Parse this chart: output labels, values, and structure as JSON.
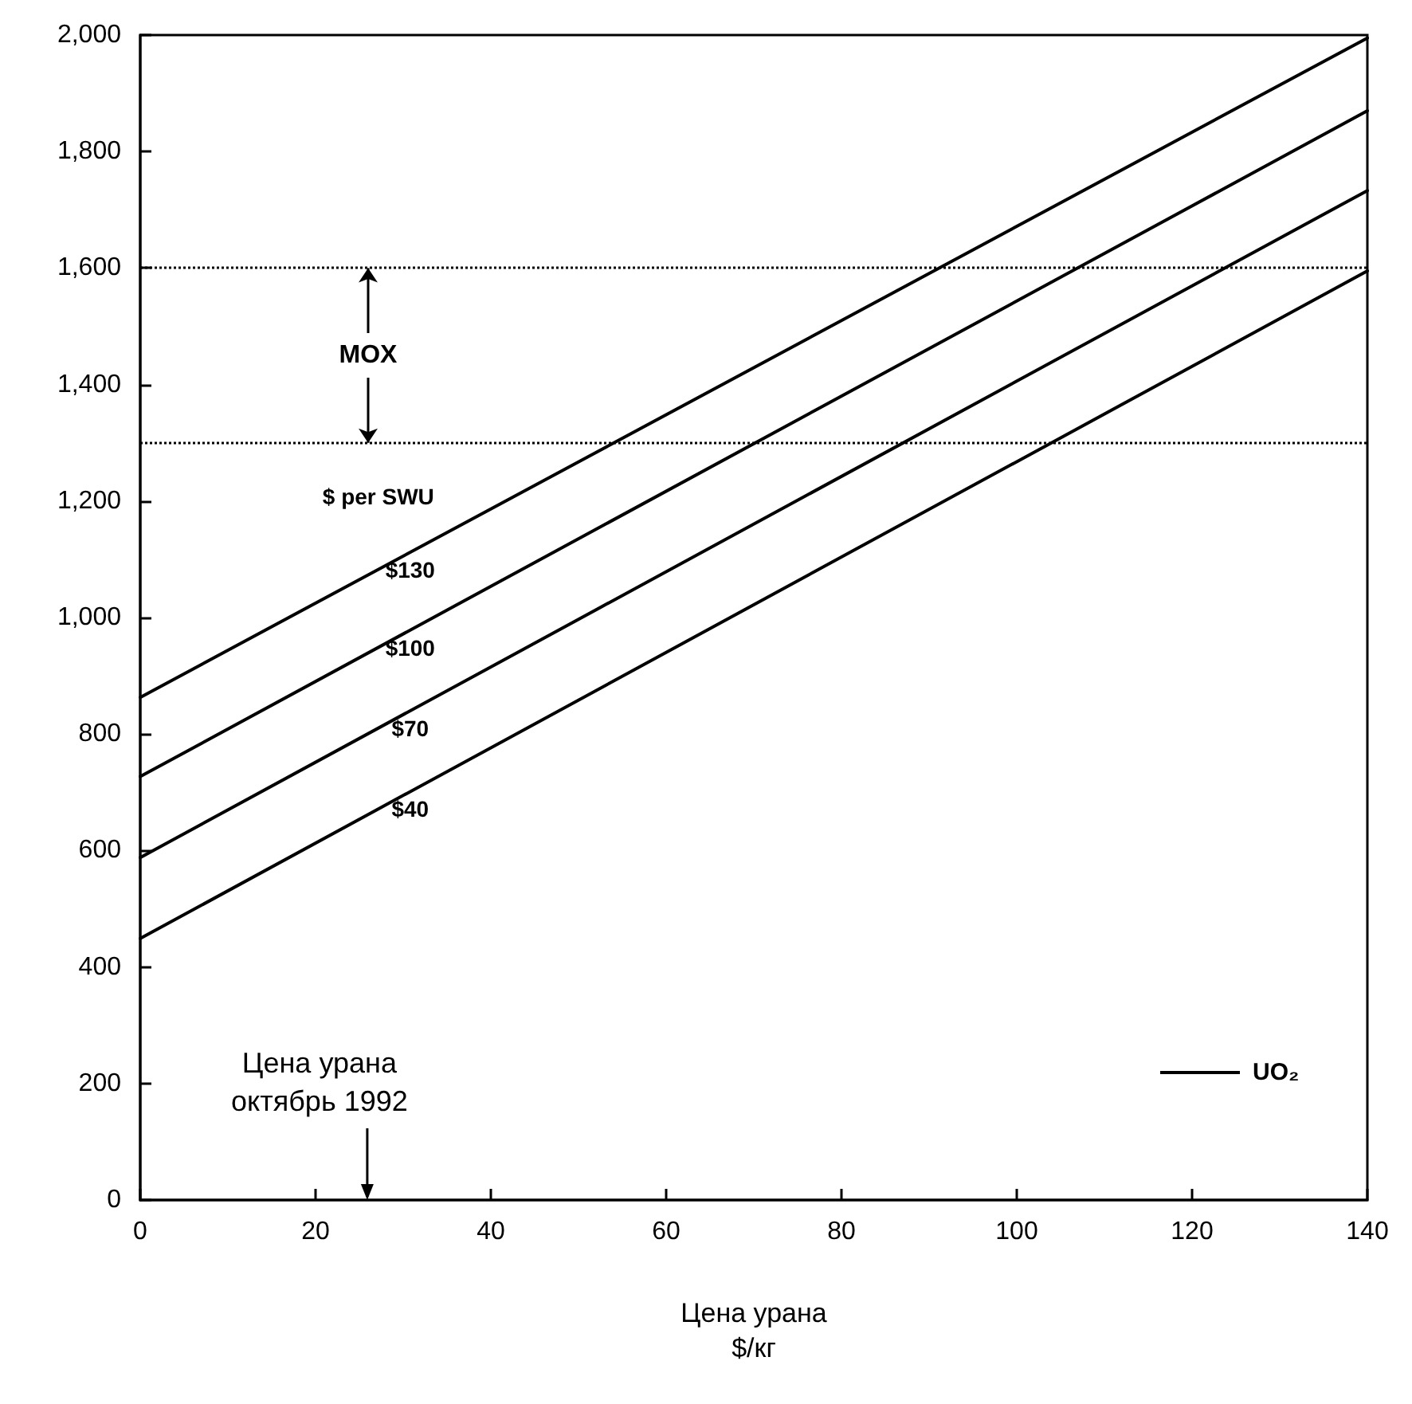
{
  "chart_data": {
    "type": "line",
    "xlabel": "Цена урана\n$/кг",
    "x": [
      0,
      140
    ],
    "series": [
      {
        "name": "$130",
        "color": "#000000",
        "values": [
          863,
          1995
        ]
      },
      {
        "name": "$100",
        "color": "#000000",
        "values": [
          727,
          1870
        ]
      },
      {
        "name": "$70",
        "color": "#000000",
        "values": [
          588,
          1733
        ]
      },
      {
        "name": "$40",
        "color": "#000000",
        "values": [
          449,
          1595
        ]
      }
    ],
    "xlim": [
      0,
      140
    ],
    "xticks": [
      0,
      20,
      40,
      60,
      80,
      100,
      120,
      140
    ],
    "ylim": [
      0,
      2000
    ],
    "yticks": [
      0,
      200,
      400,
      600,
      800,
      {
        "value": 1000,
        "label": "1,000"
      },
      {
        "value": 1200,
        "label": "1,200"
      },
      {
        "value": 1400,
        "label": "1,400"
      },
      {
        "value": 1600,
        "label": "1,600"
      },
      {
        "value": 1800,
        "label": "1,800"
      },
      {
        "value": 2000,
        "label": "2,000"
      }
    ],
    "ref_lines": [
      {
        "axis": "y",
        "value": 1600,
        "line_style": "dotted",
        "color": "#000000"
      },
      {
        "axis": "y",
        "value": 1300,
        "line_style": "dotted",
        "color": "#000000"
      }
    ],
    "annotations": [
      {
        "text": "MOX",
        "x": 26,
        "y": 1600
      },
      "Цена урана\nоктябрь 1992",
      "$ per SWU",
      "UO₂"
    ],
    "grid": false,
    "marker": "none",
    "line_style": "solid"
  }
}
